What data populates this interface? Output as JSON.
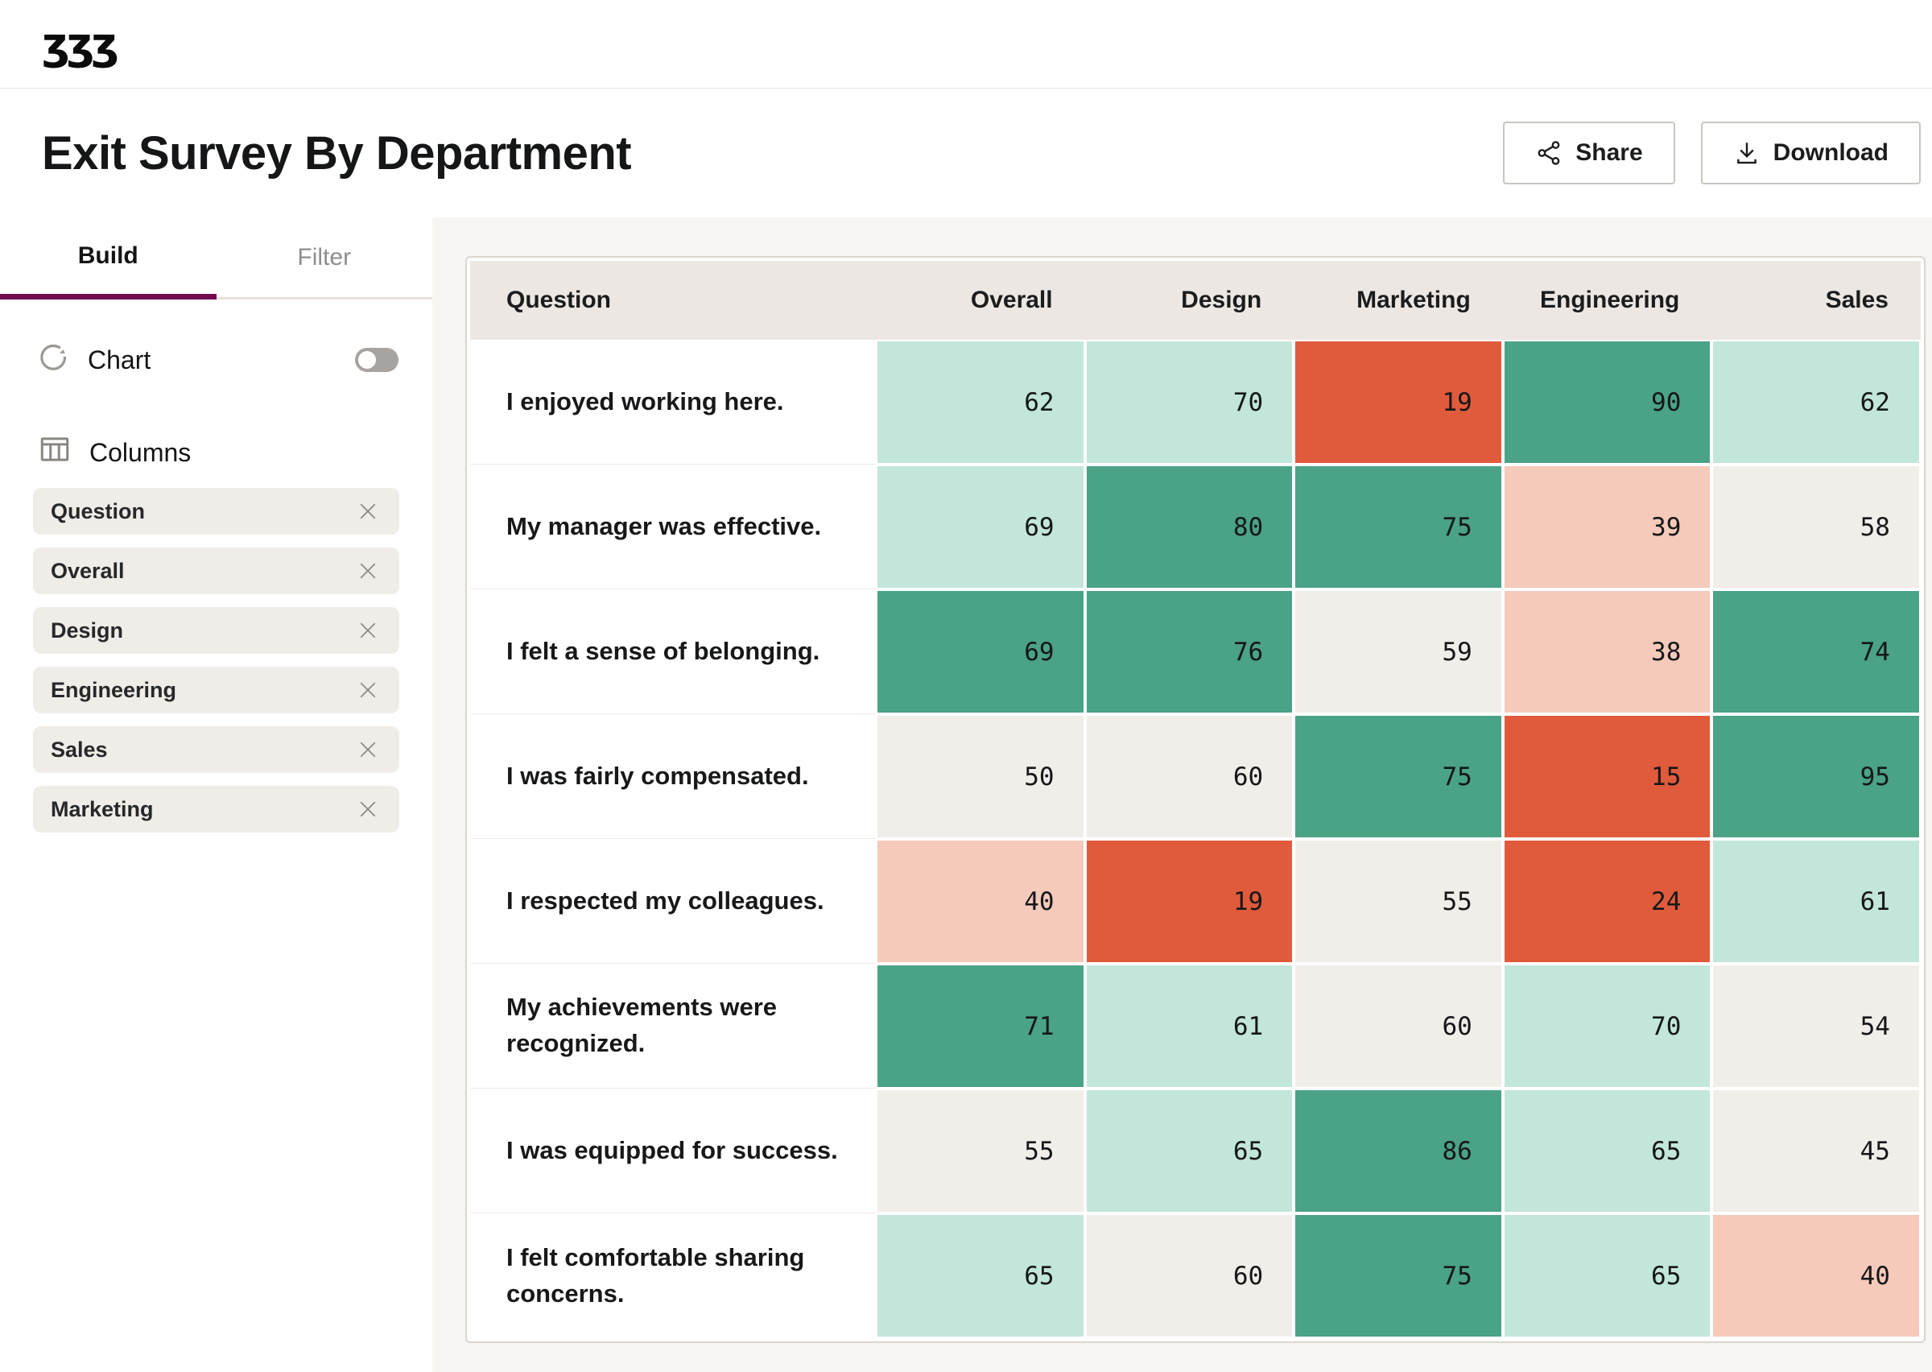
{
  "brand": {
    "logo_glyphs": "ʒʒʒ"
  },
  "titlebar": {
    "title": "Exit Survey By Department",
    "share_label": "Share",
    "download_label": "Download"
  },
  "sidebar": {
    "tabs": {
      "build": "Build",
      "filter": "Filter"
    },
    "chart_row": {
      "label": "Chart",
      "toggle_state": "off"
    },
    "columns_section": {
      "label": "Columns",
      "chips": [
        "Question",
        "Overall",
        "Design",
        "Engineering",
        "Sales",
        "Marketing"
      ]
    }
  },
  "palette": {
    "green": "#4AA287",
    "mint": "#C2E6D9",
    "neutral": "#F1EDE8",
    "pink": "#F5CABB",
    "orange": "#DF5B3B",
    "accent": "#740B52",
    "header_bg": "#ECE7E2",
    "page_bg": "#F7F5F1"
  },
  "table": {
    "columns": [
      "Question",
      "Overall",
      "Design",
      "Marketing",
      "Engineering",
      "Sales"
    ],
    "rows": [
      {
        "question": "I enjoyed working here.",
        "cells": [
          {
            "value": 62,
            "tone": "mint"
          },
          {
            "value": 70,
            "tone": "mint"
          },
          {
            "value": 19,
            "tone": "orange"
          },
          {
            "value": 90,
            "tone": "green"
          },
          {
            "value": 62,
            "tone": "mint"
          }
        ]
      },
      {
        "question": "My manager was effective.",
        "cells": [
          {
            "value": 69,
            "tone": "mint"
          },
          {
            "value": 80,
            "tone": "green"
          },
          {
            "value": 75,
            "tone": "green"
          },
          {
            "value": 39,
            "tone": "pink"
          },
          {
            "value": 58,
            "tone": "neutral"
          }
        ]
      },
      {
        "question": "I felt a sense of belonging.",
        "cells": [
          {
            "value": 69,
            "tone": "green"
          },
          {
            "value": 76,
            "tone": "green"
          },
          {
            "value": 59,
            "tone": "neutral"
          },
          {
            "value": 38,
            "tone": "pink"
          },
          {
            "value": 74,
            "tone": "green"
          }
        ]
      },
      {
        "question": "I was fairly compensated.",
        "cells": [
          {
            "value": 50,
            "tone": "neutral"
          },
          {
            "value": 60,
            "tone": "neutral"
          },
          {
            "value": 75,
            "tone": "green"
          },
          {
            "value": 15,
            "tone": "orange"
          },
          {
            "value": 95,
            "tone": "green"
          }
        ]
      },
      {
        "question": "I respected my colleagues.",
        "cells": [
          {
            "value": 40,
            "tone": "pink"
          },
          {
            "value": 19,
            "tone": "orange"
          },
          {
            "value": 55,
            "tone": "neutral"
          },
          {
            "value": 24,
            "tone": "orange"
          },
          {
            "value": 61,
            "tone": "mint"
          }
        ]
      },
      {
        "question": "My achievements were recognized.",
        "cells": [
          {
            "value": 71,
            "tone": "green"
          },
          {
            "value": 61,
            "tone": "mint"
          },
          {
            "value": 60,
            "tone": "neutral"
          },
          {
            "value": 70,
            "tone": "mint"
          },
          {
            "value": 54,
            "tone": "neutral"
          }
        ]
      },
      {
        "question": "I was equipped for success.",
        "cells": [
          {
            "value": 55,
            "tone": "neutral"
          },
          {
            "value": 65,
            "tone": "mint"
          },
          {
            "value": 86,
            "tone": "green"
          },
          {
            "value": 65,
            "tone": "mint"
          },
          {
            "value": 45,
            "tone": "neutral"
          }
        ]
      },
      {
        "question": "I felt comfortable sharing concerns.",
        "cells": [
          {
            "value": 65,
            "tone": "mint"
          },
          {
            "value": 60,
            "tone": "neutral"
          },
          {
            "value": 75,
            "tone": "green"
          },
          {
            "value": 65,
            "tone": "mint"
          },
          {
            "value": 40,
            "tone": "pink"
          }
        ]
      }
    ]
  }
}
